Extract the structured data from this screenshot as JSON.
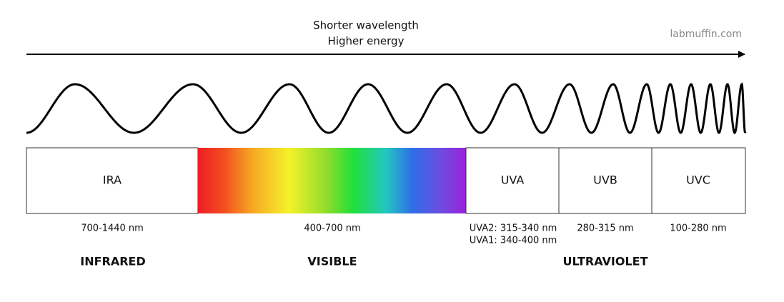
{
  "header": {
    "arrow_label": [
      "Shorter wavelength",
      "Higher energy"
    ],
    "watermark": "labmuffin.com"
  },
  "bands": [
    {
      "label": "IRA",
      "range": [
        "700-1440 nm"
      ]
    },
    {
      "range": [
        "400-700 nm"
      ]
    },
    {
      "label": "UVA",
      "range": [
        "UVA2: 315-340 nm",
        "UVA1: 340-400 nm"
      ]
    },
    {
      "label": "UVB",
      "range": [
        "280-315 nm"
      ]
    },
    {
      "label": "UVC",
      "range": [
        "100-280 nm"
      ]
    }
  ],
  "groups": [
    "INFRARED",
    "VISIBLE",
    "ULTRAVIOLET"
  ]
}
